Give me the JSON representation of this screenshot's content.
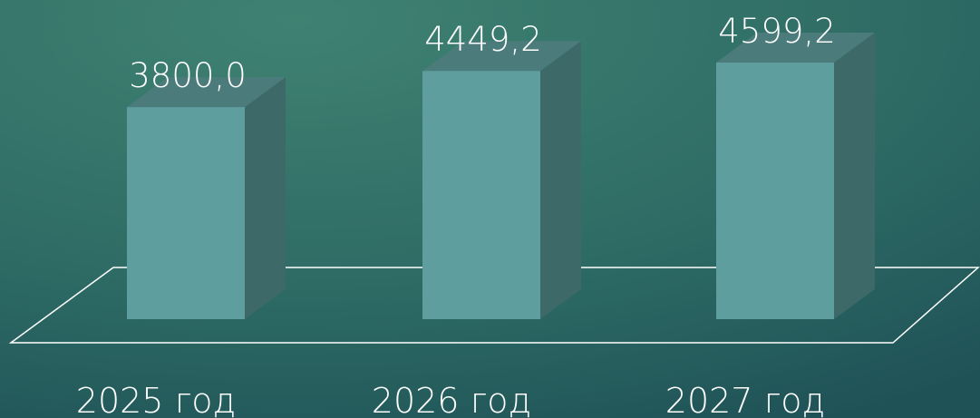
{
  "chart_data": {
    "type": "bar3d",
    "categories": [
      "2025 год",
      "2026 год",
      "2027 год"
    ],
    "values": [
      3800.0,
      4449.2,
      4599.2
    ],
    "value_labels": [
      "3800,0",
      "4449,2",
      "4599,2"
    ],
    "color": "#5f9e9e"
  }
}
